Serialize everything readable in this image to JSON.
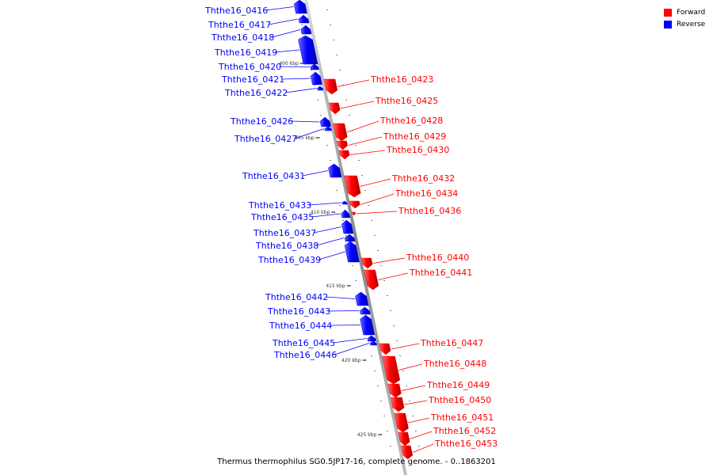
{
  "legend": {
    "forward_label": "Forward",
    "reverse_label": "Reverse",
    "forward_color": "#ff0000",
    "reverse_color": "#0000ff"
  },
  "caption": "Thermus thermophilus SG0.5JP17-16, complete genome. - 0..1863201",
  "scale_ticks": [
    "400 kbp",
    "405 kbp",
    "410 kbp",
    "415 kbp",
    "420 kbp",
    "425 kbp"
  ],
  "genes": [
    {
      "name": "Ththe16_0416",
      "strand": "reverse"
    },
    {
      "name": "Ththe16_0417",
      "strand": "reverse"
    },
    {
      "name": "Ththe16_0418",
      "strand": "reverse"
    },
    {
      "name": "Ththe16_0419",
      "strand": "reverse"
    },
    {
      "name": "Ththe16_0420",
      "strand": "reverse"
    },
    {
      "name": "Ththe16_0421",
      "strand": "reverse"
    },
    {
      "name": "Ththe16_0422",
      "strand": "reverse"
    },
    {
      "name": "Ththe16_0423",
      "strand": "forward"
    },
    {
      "name": "Ththe16_0425",
      "strand": "forward"
    },
    {
      "name": "Ththe16_0426",
      "strand": "reverse"
    },
    {
      "name": "Ththe16_0427",
      "strand": "reverse"
    },
    {
      "name": "Ththe16_0428",
      "strand": "forward"
    },
    {
      "name": "Ththe16_0429",
      "strand": "forward"
    },
    {
      "name": "Ththe16_0430",
      "strand": "forward"
    },
    {
      "name": "Ththe16_0431",
      "strand": "reverse"
    },
    {
      "name": "Ththe16_0432",
      "strand": "forward"
    },
    {
      "name": "Ththe16_0433",
      "strand": "reverse"
    },
    {
      "name": "Ththe16_0434",
      "strand": "forward"
    },
    {
      "name": "Ththe16_0435",
      "strand": "reverse"
    },
    {
      "name": "Ththe16_0436",
      "strand": "forward"
    },
    {
      "name": "Ththe16_0437",
      "strand": "reverse"
    },
    {
      "name": "Ththe16_0438",
      "strand": "reverse"
    },
    {
      "name": "Ththe16_0439",
      "strand": "reverse"
    },
    {
      "name": "Ththe16_0440",
      "strand": "forward"
    },
    {
      "name": "Ththe16_0441",
      "strand": "forward"
    },
    {
      "name": "Ththe16_0442",
      "strand": "reverse"
    },
    {
      "name": "Ththe16_0443",
      "strand": "reverse"
    },
    {
      "name": "Ththe16_0444",
      "strand": "reverse"
    },
    {
      "name": "Ththe16_0445",
      "strand": "reverse"
    },
    {
      "name": "Ththe16_0446",
      "strand": "reverse"
    },
    {
      "name": "Ththe16_0447",
      "strand": "forward"
    },
    {
      "name": "Ththe16_0448",
      "strand": "forward"
    },
    {
      "name": "Ththe16_0449",
      "strand": "forward"
    },
    {
      "name": "Ththe16_0450",
      "strand": "forward"
    },
    {
      "name": "Ththe16_0451",
      "strand": "forward"
    },
    {
      "name": "Ththe16_0452",
      "strand": "forward"
    },
    {
      "name": "Ththe16_0453",
      "strand": "forward"
    }
  ]
}
